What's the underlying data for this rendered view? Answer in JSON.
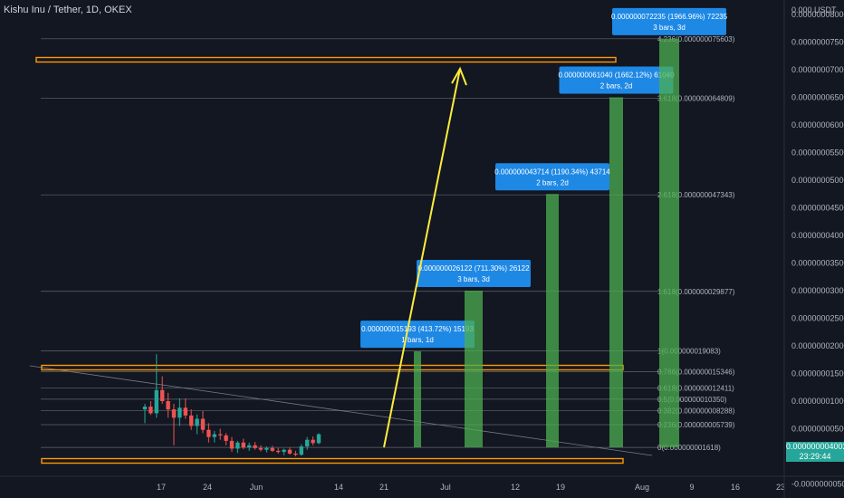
{
  "header": {
    "symbol_title": "Kishu Inu / Tether, 1D, OKEX",
    "currency": "0.000 USDT"
  },
  "colors": {
    "background": "#131722",
    "grid": "#2a2e39",
    "up": "#26a69a",
    "down": "#ef5350",
    "fib_line": "#787b86",
    "highlight_line": "#ff9800",
    "projection_bar": "#4caf50",
    "arrow": "#ffeb3b",
    "label_box": "#1e88e5"
  },
  "chart_data": {
    "type": "candlestick",
    "x_ticks": [
      "17",
      "24",
      "Jun",
      "14",
      "21",
      "Jul",
      "12",
      "19",
      "Aug",
      "9",
      "16",
      "23"
    ],
    "y_ticks": [
      "0.000000080000",
      "0.000000075000",
      "0.000000070000",
      "0.000000065000",
      "0.000000060000",
      "0.000000055000",
      "0.000000050000",
      "0.000000045000",
      "0.000000040000",
      "0.000000035000",
      "0.000000030000",
      "0.000000025000",
      "0.000000020000",
      "0.000000015000",
      "0.000000010000",
      "0.000000005000",
      "0.000000000000",
      "-0.000000005000"
    ],
    "ylim": [
      -7e-09,
      8.6e-08
    ],
    "last_price": "0.000000004002",
    "countdown": "23:29:44",
    "candles": [
      {
        "o": 8.5,
        "h": 9.5,
        "l": 6.0,
        "c": 9.0
      },
      {
        "o": 9.0,
        "h": 10.0,
        "l": 7.5,
        "c": 7.8
      },
      {
        "o": 7.8,
        "h": 18.5,
        "l": 7.0,
        "c": 12.0
      },
      {
        "o": 12.0,
        "h": 14.5,
        "l": 9.5,
        "c": 10.0
      },
      {
        "o": 10.0,
        "h": 11.5,
        "l": 7.0,
        "c": 8.5
      },
      {
        "o": 8.5,
        "h": 9.5,
        "l": 2.0,
        "c": 7.0
      },
      {
        "o": 7.0,
        "h": 10.5,
        "l": 5.5,
        "c": 8.8
      },
      {
        "o": 8.8,
        "h": 10.5,
        "l": 6.8,
        "c": 7.4
      },
      {
        "o": 7.4,
        "h": 8.5,
        "l": 4.8,
        "c": 5.5
      },
      {
        "o": 5.5,
        "h": 7.6,
        "l": 4.0,
        "c": 6.8
      },
      {
        "o": 6.8,
        "h": 8.2,
        "l": 4.2,
        "c": 4.8
      },
      {
        "o": 4.8,
        "h": 6.0,
        "l": 2.5,
        "c": 3.5
      },
      {
        "o": 3.5,
        "h": 4.6,
        "l": 2.5,
        "c": 4.0
      },
      {
        "o": 4.0,
        "h": 5.0,
        "l": 3.0,
        "c": 3.8
      },
      {
        "o": 3.8,
        "h": 4.2,
        "l": 2.0,
        "c": 2.8
      },
      {
        "o": 2.8,
        "h": 3.5,
        "l": 0.8,
        "c": 1.4
      },
      {
        "o": 1.4,
        "h": 2.8,
        "l": 0.6,
        "c": 2.5
      },
      {
        "o": 2.5,
        "h": 3.2,
        "l": 1.3,
        "c": 1.6
      },
      {
        "o": 1.6,
        "h": 2.5,
        "l": 1.0,
        "c": 2.0
      },
      {
        "o": 2.0,
        "h": 2.6,
        "l": 1.2,
        "c": 1.5
      },
      {
        "o": 1.5,
        "h": 2.0,
        "l": 0.9,
        "c": 1.2
      },
      {
        "o": 1.2,
        "h": 1.8,
        "l": 0.7,
        "c": 1.5
      },
      {
        "o": 1.5,
        "h": 1.9,
        "l": 0.8,
        "c": 1.0
      },
      {
        "o": 1.0,
        "h": 1.5,
        "l": 0.5,
        "c": 0.8
      },
      {
        "o": 0.8,
        "h": 1.4,
        "l": 0.2,
        "c": 1.2
      },
      {
        "o": 1.2,
        "h": 1.6,
        "l": 0.3,
        "c": 0.5
      },
      {
        "o": 0.5,
        "h": 1.0,
        "l": 0.0,
        "c": 0.3
      },
      {
        "o": 0.3,
        "h": 2.2,
        "l": 0.1,
        "c": 1.8
      },
      {
        "o": 1.8,
        "h": 3.5,
        "l": 1.2,
        "c": 3.0
      },
      {
        "o": 3.0,
        "h": 3.6,
        "l": 2.0,
        "c": 2.4
      },
      {
        "o": 2.4,
        "h": 4.2,
        "l": 2.2,
        "c": 4.0
      }
    ],
    "fib_levels": [
      {
        "label": "0(0.000000001618)",
        "value": 1.618
      },
      {
        "label": "0.236(0.000000005739)",
        "value": 5.739
      },
      {
        "label": "0.382(0.000000008288)",
        "value": 8.288
      },
      {
        "label": "0.5(0.000000010350)",
        "value": 10.35
      },
      {
        "label": "0.618(0.000000012411)",
        "value": 12.411
      },
      {
        "label": "0.786(0.000000015346)",
        "value": 15.346
      },
      {
        "label": "1(0.000000019083)",
        "value": 19.083
      },
      {
        "label": "1.618(0.000000029877)",
        "value": 29.877
      },
      {
        "label": "2.618(0.000000047343)",
        "value": 47.343
      },
      {
        "label": "3.618(0.000000064809)",
        "value": 64.809
      },
      {
        "label": "4.236(0.000000075603)",
        "value": 75.603
      }
    ],
    "projections": [
      {
        "line1": "0.000000015193 (413.72%) 15193",
        "line2": "1 bars, 1d",
        "value": 19.0
      },
      {
        "line1": "0.000000026122 (711.30%) 26122",
        "line2": "3 bars, 3d",
        "value": 30.0
      },
      {
        "line1": "0.000000043714 (1190.34%) 43714",
        "line2": "2 bars, 2d",
        "value": 47.5
      },
      {
        "line1": "0.000000061040 (1662.12%) 61040",
        "line2": "2 bars, 2d",
        "value": 65.0
      },
      {
        "line1": "0.000000072235 (1966.96%) 72235",
        "line2": "3 bars, 3d",
        "value": 75.6
      }
    ]
  }
}
